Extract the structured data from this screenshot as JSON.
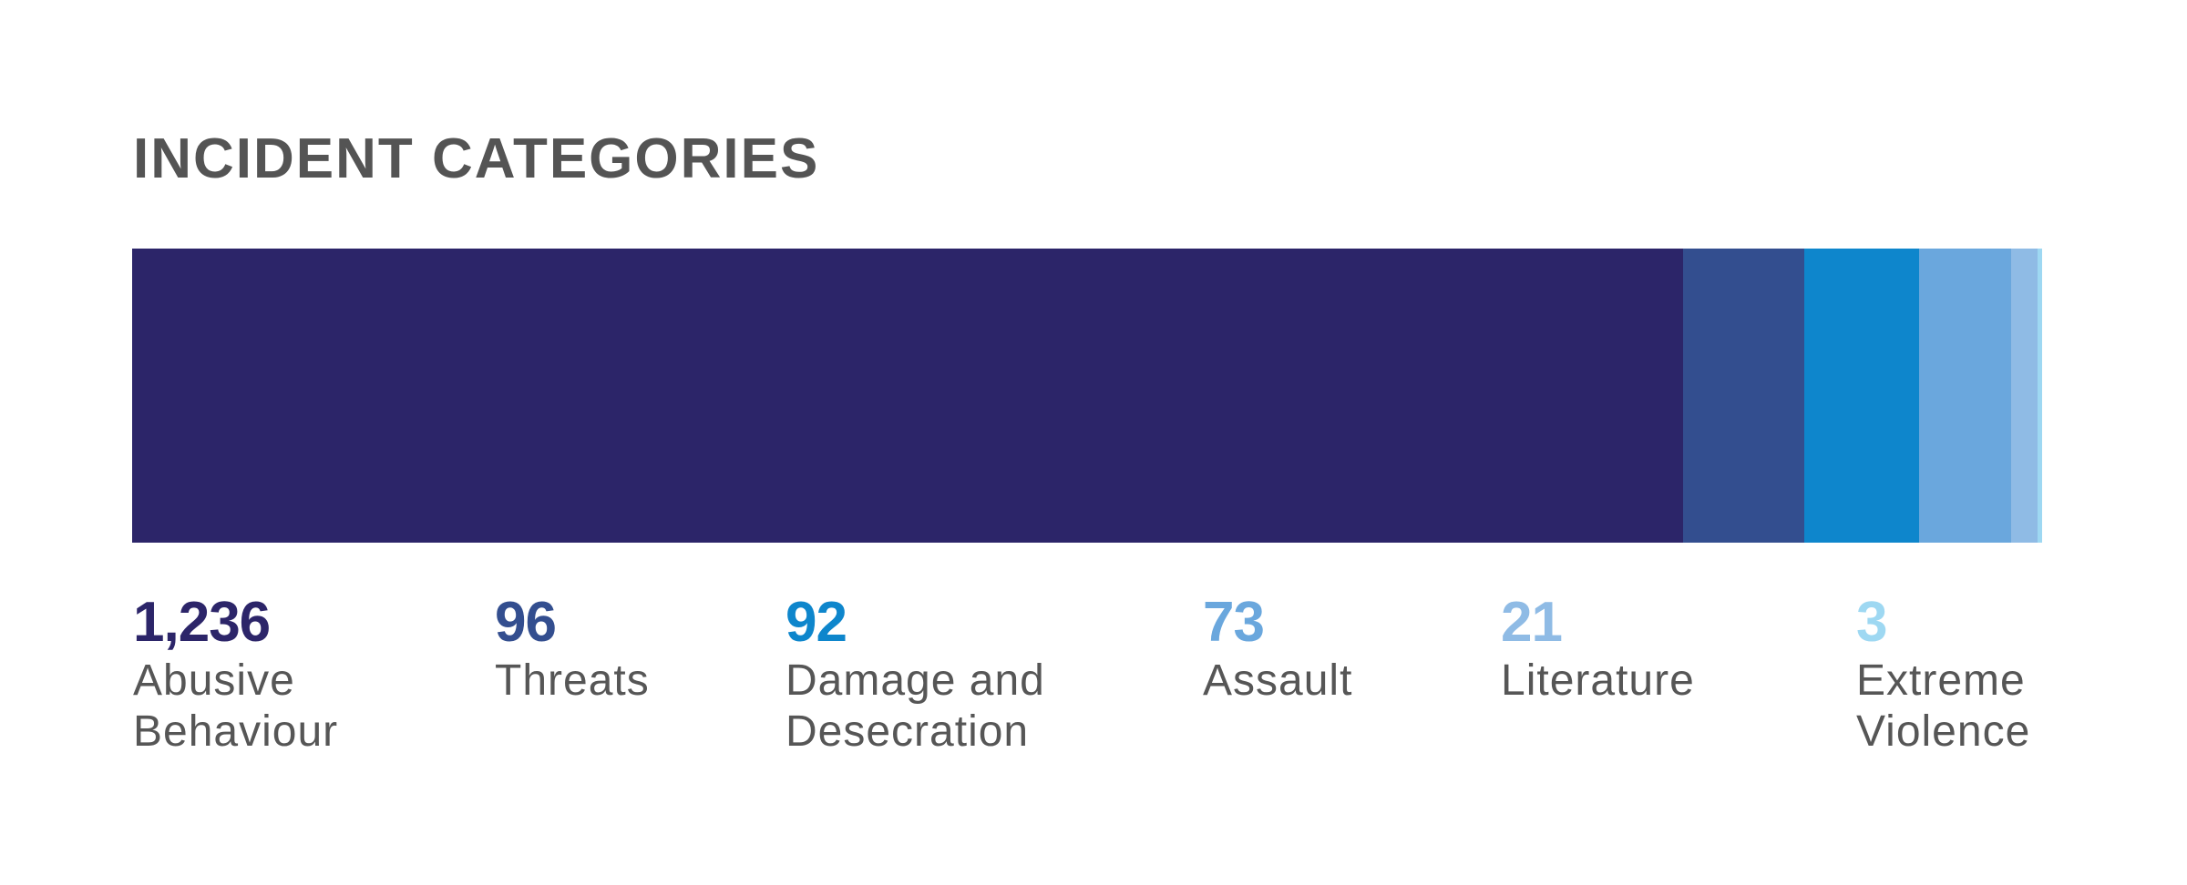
{
  "chart_data": {
    "type": "bar",
    "orientation": "horizontal-stacked",
    "title": "INCIDENT CATEGORIES",
    "series": [
      {
        "name": "Abusive Behaviour",
        "value_label": "1,236",
        "value": 1236,
        "color": "#2c2569"
      },
      {
        "name": "Threats",
        "value_label": "96",
        "value": 96,
        "color": "#334e8f"
      },
      {
        "name": "Damage and Desecration",
        "value_label": "92",
        "value": 92,
        "color": "#0e86cc"
      },
      {
        "name": "Assault",
        "value_label": "73",
        "value": 73,
        "color": "#6aa7dd"
      },
      {
        "name": "Literature",
        "value_label": "21",
        "value": 21,
        "color": "#8fbbe5"
      },
      {
        "name": "Extreme Violence",
        "value_label": "3",
        "value": 3,
        "color": "#9ed8f2"
      }
    ],
    "labels": [
      {
        "value": "1,236",
        "name": "Abusive\nBehaviour"
      },
      {
        "value": "96",
        "name": "Threats"
      },
      {
        "value": "92",
        "name": "Damage and\nDesecration"
      },
      {
        "value": "73",
        "name": "Assault"
      },
      {
        "value": "21",
        "name": "Literature"
      },
      {
        "value": "3",
        "name": "Extreme\nViolence"
      }
    ],
    "legend": "below",
    "grid": false
  }
}
